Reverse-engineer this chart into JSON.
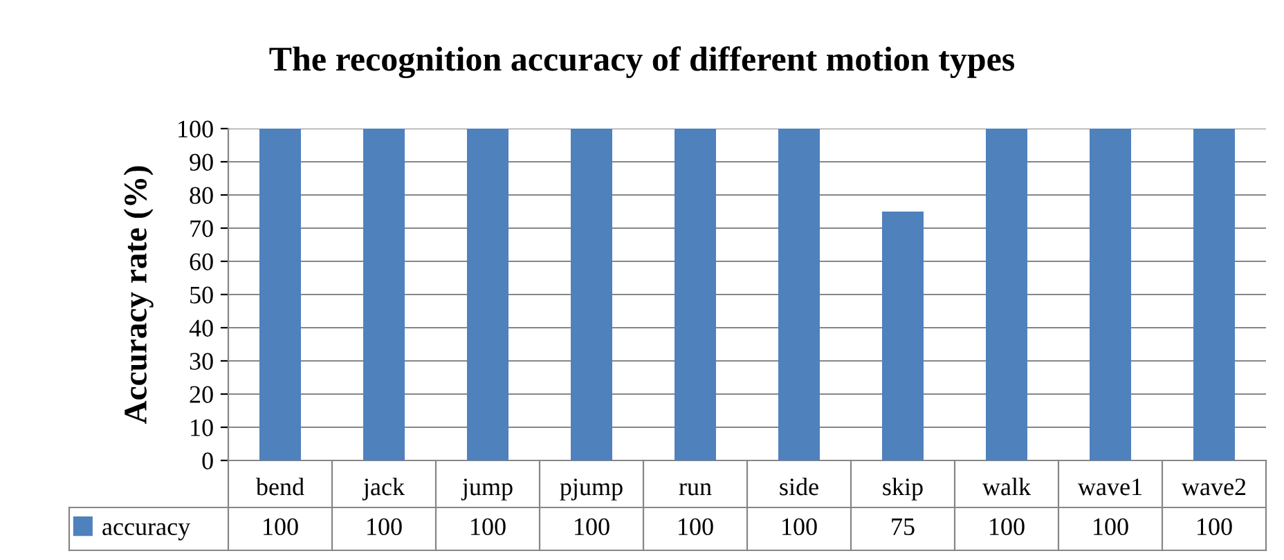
{
  "chart_data": {
    "type": "bar",
    "title": "The recognition accuracy of different motion types",
    "ylabel": "Accuracy rate (%)",
    "categories": [
      "bend",
      "jack",
      "jump",
      "pjump",
      "run",
      "side",
      "skip",
      "walk",
      "wave1",
      "wave2"
    ],
    "series": [
      {
        "name": "accuracy",
        "color": "#4f81bd",
        "values": [
          100,
          100,
          100,
          100,
          100,
          100,
          75,
          100,
          100,
          100
        ]
      }
    ],
    "ylim": [
      0,
      100
    ],
    "yticks": [
      0,
      10,
      20,
      30,
      40,
      50,
      60,
      70,
      80,
      90,
      100
    ],
    "grid": "y",
    "legend": "bottom left",
    "data_labels": true
  }
}
